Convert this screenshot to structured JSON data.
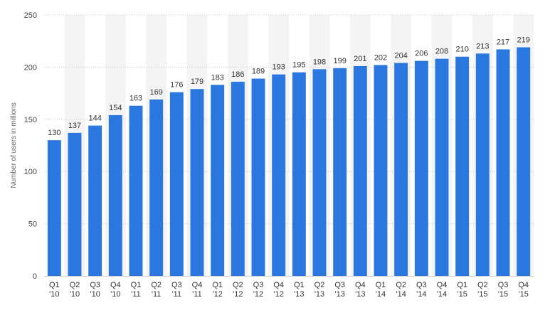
{
  "chart_data": {
    "type": "bar",
    "ylabel": "Number of users in millions",
    "ylim": [
      0,
      250
    ],
    "yticks": [
      0,
      50,
      100,
      150,
      200,
      250
    ],
    "grid": true,
    "bar_color": "#2a77df",
    "band_color": "#f4f4f4",
    "categories": [
      [
        "Q1",
        "'10"
      ],
      [
        "Q2",
        "'10"
      ],
      [
        "Q3",
        "'10"
      ],
      [
        "Q4",
        "'10"
      ],
      [
        "Q1",
        "'11"
      ],
      [
        "Q2",
        "'11"
      ],
      [
        "Q3",
        "'11"
      ],
      [
        "Q4",
        "'11"
      ],
      [
        "Q1",
        "'12"
      ],
      [
        "Q2",
        "'12"
      ],
      [
        "Q3",
        "'12"
      ],
      [
        "Q4",
        "'12"
      ],
      [
        "Q1",
        "'13"
      ],
      [
        "Q2",
        "'13"
      ],
      [
        "Q3",
        "'13"
      ],
      [
        "Q4",
        "'13"
      ],
      [
        "Q1",
        "'14"
      ],
      [
        "Q2",
        "'14"
      ],
      [
        "Q3",
        "'14"
      ],
      [
        "Q4",
        "'14"
      ],
      [
        "Q1",
        "'15"
      ],
      [
        "Q2",
        "'15"
      ],
      [
        "Q3",
        "'15"
      ],
      [
        "Q4",
        "'15"
      ]
    ],
    "values": [
      130,
      137,
      144,
      154,
      163,
      169,
      176,
      179,
      183,
      186,
      189,
      193,
      195,
      198,
      199,
      201,
      202,
      204,
      206,
      208,
      210,
      213,
      217,
      219
    ]
  }
}
